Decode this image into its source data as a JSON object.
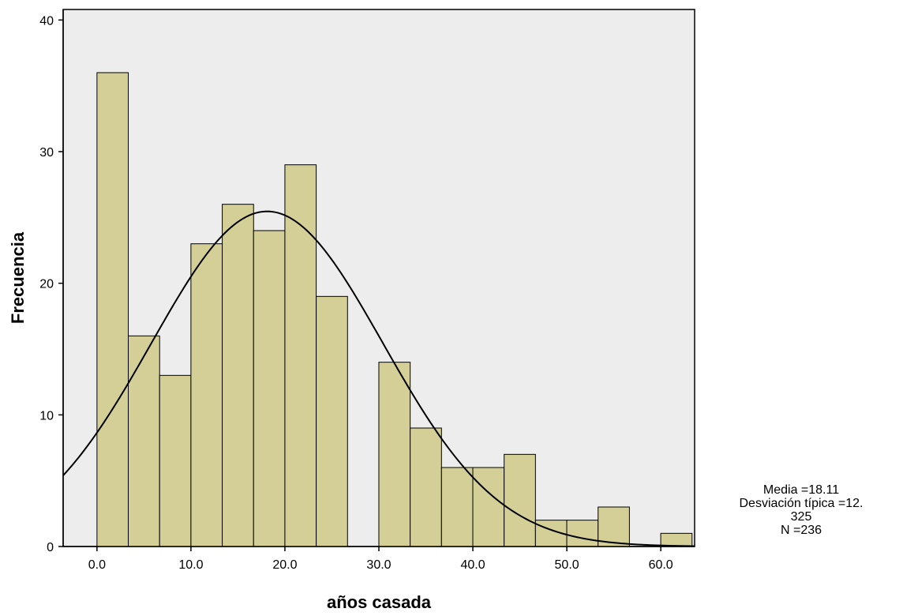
{
  "chart_data": {
    "type": "bar",
    "subtype": "histogram",
    "xlabel": "años casada",
    "ylabel": "Frecuencia",
    "xlim": [
      -3.6,
      63.6
    ],
    "ylim": [
      0,
      40.8
    ],
    "x_ticks": [
      "0.0",
      "10.0",
      "20.0",
      "30.0",
      "40.0",
      "50.0",
      "60.0"
    ],
    "y_ticks": [
      "0",
      "10",
      "20",
      "30",
      "40"
    ],
    "bin_start": 0,
    "bin_width": 3.333,
    "values": [
      36,
      16,
      13,
      23,
      26,
      24,
      29,
      19,
      0,
      14,
      9,
      6,
      6,
      7,
      2,
      2,
      3,
      0,
      1
    ],
    "normal_curve": {
      "mean": 18.11,
      "sd": 12.325,
      "n": 236
    },
    "grid": false,
    "bar_color": "#d4cf96",
    "plot_background": "#ededed"
  },
  "stats": {
    "line1": "Media =18.11",
    "line2": "Desviación típica =12.",
    "line3": "325",
    "line4": "N =236"
  }
}
